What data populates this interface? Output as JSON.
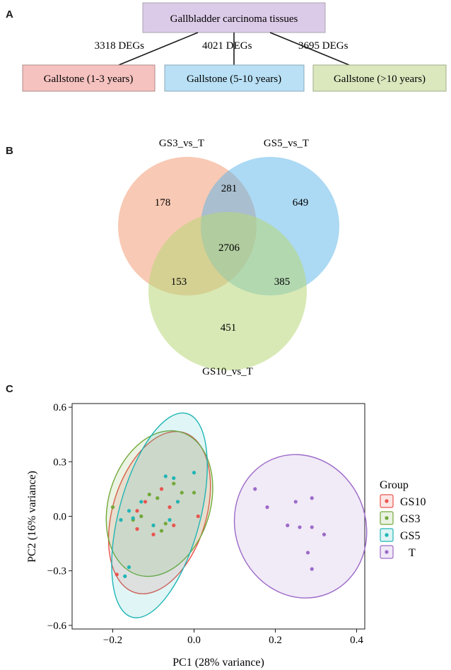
{
  "panels": {
    "a": "A",
    "b": "B",
    "c": "C"
  },
  "flow": {
    "root": "Gallbladder carcinoma tissues",
    "edges": [
      "3318 DEGs",
      "4021 DEGs",
      "3695 DEGs"
    ],
    "boxes": [
      "Gallstone (1-3 years)",
      "Gallstone (5-10 years)",
      "Gallstone (>10 years)"
    ],
    "colors": {
      "root": "#dccbe8",
      "box1": "#f5c2bf",
      "box2": "#b9e0f5",
      "box3": "#dbe8be"
    }
  },
  "venn": {
    "set_labels": [
      "GS3_vs_T",
      "GS5_vs_T",
      "GS10_vs_T"
    ],
    "regions": {
      "gs3_only": "178",
      "gs3_gs5": "281",
      "gs5_only": "649",
      "all_three": "2706",
      "gs3_gs10": "153",
      "gs5_gs10": "385",
      "gs10_only": "451"
    },
    "colors": {
      "gs3": "#f4a582",
      "gs5": "#5ab4e8",
      "gs10": "#b8d779"
    }
  },
  "chart_data": {
    "type": "scatter",
    "xlabel": "PC1 (28% variance)",
    "ylabel": "PC2 (16% variance)",
    "xlim": [
      -0.3,
      0.42
    ],
    "ylim": [
      -0.62,
      0.62
    ],
    "x_ticks": [
      -0.2,
      0.0,
      0.2,
      0.4
    ],
    "y_ticks": [
      -0.6,
      -0.3,
      0.0,
      0.3,
      0.6
    ],
    "x_tick_labels": [
      "−0.2",
      "0.0",
      "0.2",
      "0.4"
    ],
    "y_tick_labels": [
      "−0.6",
      "−0.3",
      "0.0",
      "0.3",
      "0.6"
    ],
    "legend_title": "Group",
    "legend_labels": [
      "GS10",
      "GS3",
      "GS5",
      "T"
    ],
    "series": [
      {
        "name": "GS10",
        "color": "#e8554e",
        "points": [
          [
            -0.19,
            -0.32
          ],
          [
            -0.14,
            0.03
          ],
          [
            -0.12,
            0.08
          ],
          [
            -0.08,
            0.15
          ],
          [
            -0.06,
            0.05
          ],
          [
            -0.05,
            -0.05
          ],
          [
            -0.1,
            -0.1
          ],
          [
            0.01,
            0.0
          ],
          [
            -0.14,
            -0.07
          ],
          [
            -0.04,
            0.08
          ]
        ],
        "ellipse": {
          "cx": -0.085,
          "cy": 0.02,
          "rx": 0.115,
          "ry": 0.46,
          "rot": 17
        }
      },
      {
        "name": "GS3",
        "color": "#73a83a",
        "points": [
          [
            -0.2,
            0.05
          ],
          [
            -0.15,
            -0.02
          ],
          [
            -0.11,
            0.12
          ],
          [
            -0.09,
            0.1
          ],
          [
            -0.03,
            0.13
          ],
          [
            -0.08,
            -0.08
          ],
          [
            -0.13,
            0.0
          ],
          [
            0.0,
            0.13
          ],
          [
            -0.07,
            -0.04
          ],
          [
            -0.05,
            0.18
          ]
        ],
        "ellipse": {
          "cx": -0.085,
          "cy": 0.07,
          "rx": 0.125,
          "ry": 0.41,
          "rot": 17
        }
      },
      {
        "name": "GS5",
        "color": "#20b5b5",
        "points": [
          [
            -0.17,
            -0.33
          ],
          [
            -0.16,
            -0.28
          ],
          [
            -0.18,
            -0.02
          ],
          [
            -0.16,
            0.03
          ],
          [
            -0.15,
            -0.01
          ],
          [
            -0.13,
            0.08
          ],
          [
            -0.07,
            0.22
          ],
          [
            -0.05,
            0.21
          ],
          [
            0.0,
            0.24
          ],
          [
            -0.06,
            -0.02
          ],
          [
            -0.04,
            0.08
          ],
          [
            -0.1,
            -0.05
          ]
        ],
        "ellipse": {
          "cx": -0.085,
          "cy": 0.005,
          "rx": 0.1,
          "ry": 0.58,
          "rot": 15
        }
      },
      {
        "name": "T",
        "color": "#9c6ac8",
        "points": [
          [
            0.15,
            0.15
          ],
          [
            0.18,
            0.05
          ],
          [
            0.25,
            0.08
          ],
          [
            0.29,
            0.1
          ],
          [
            0.23,
            -0.05
          ],
          [
            0.26,
            -0.06
          ],
          [
            0.29,
            -0.06
          ],
          [
            0.32,
            -0.1
          ],
          [
            0.28,
            -0.2
          ],
          [
            0.29,
            -0.29
          ]
        ],
        "ellipse": {
          "cx": 0.262,
          "cy": -0.055,
          "rx": 0.16,
          "ry": 0.4,
          "rot": -22
        }
      }
    ]
  }
}
